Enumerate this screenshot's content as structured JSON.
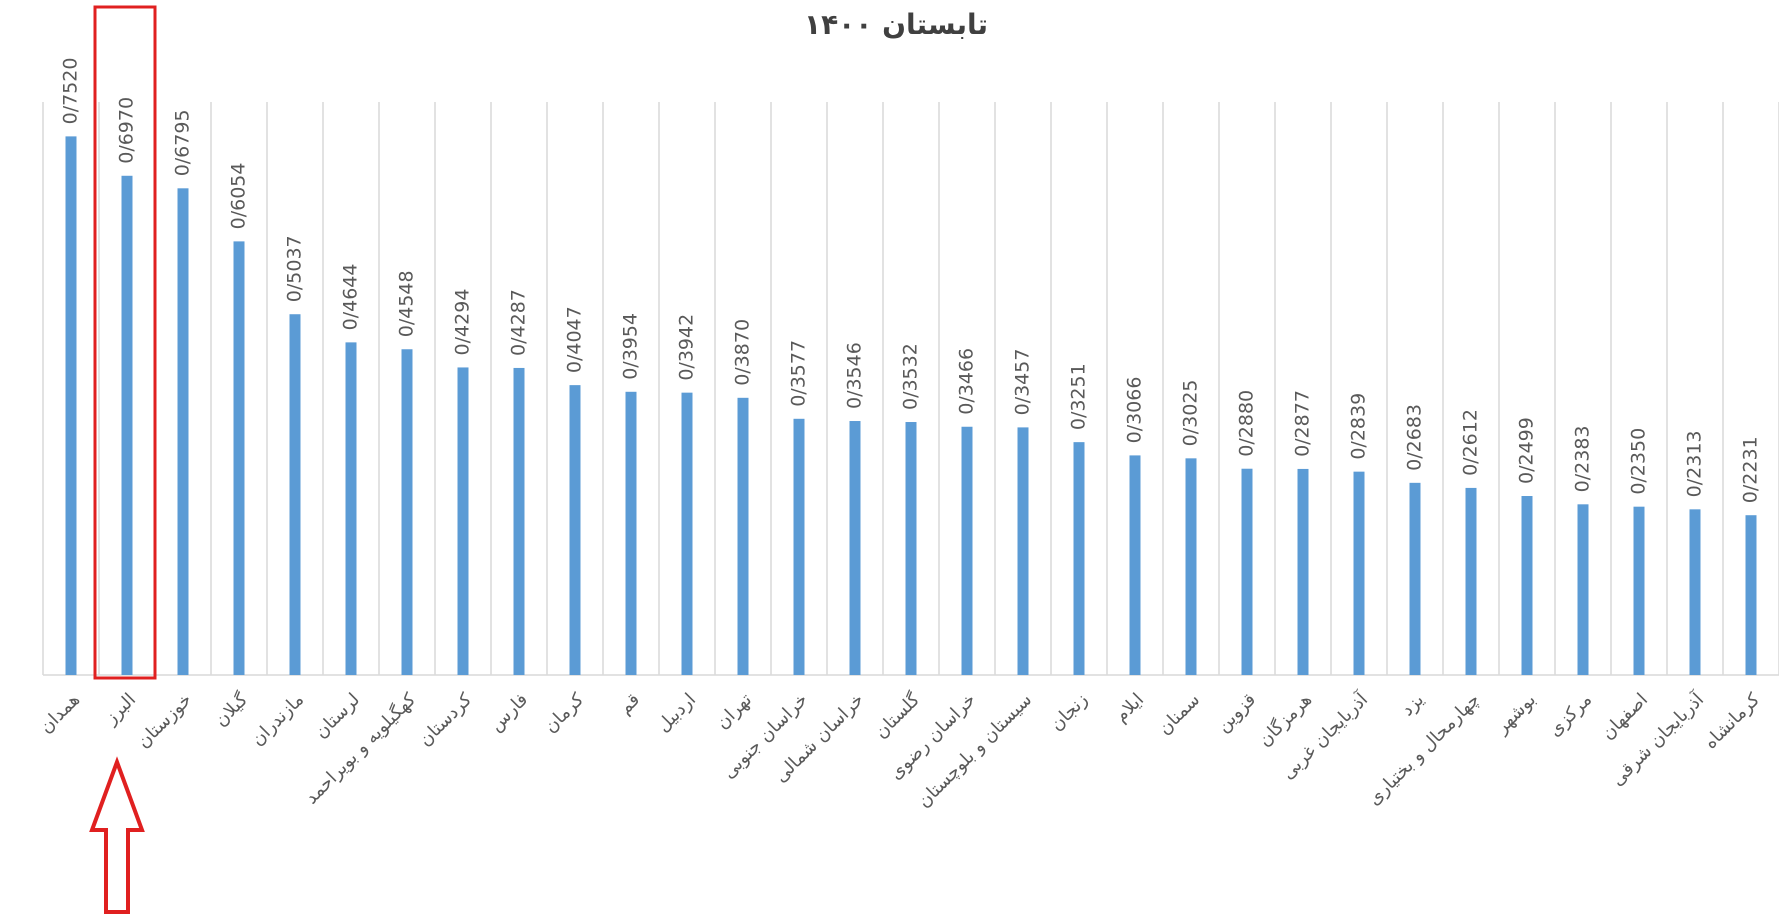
{
  "chart_data": {
    "type": "bar",
    "title": "تابستان ۱۴۰۰",
    "categories": [
      "همدان",
      "البرز",
      "خوزستان",
      "گیلان",
      "مازندران",
      "لرستان",
      "کهگیلویه و بویراحمد",
      "کردستان",
      "فارس",
      "کرمان",
      "قم",
      "اردبیل",
      "تهران",
      "خراسان جنوبی",
      "خراسان شمالی",
      "گلستان",
      "خراسان رضوی",
      "سیستان و بلوچستان",
      "زنجان",
      "ایلام",
      "سمنان",
      "قزوین",
      "هرمزگان",
      "آذربایجان غربی",
      "یزد",
      "چهارمحال و بختیاری",
      "بوشهر",
      "مرکزی",
      "اصفهان",
      "آذربایجان شرقی",
      "کرمانشاه"
    ],
    "values": [
      0.752,
      0.697,
      0.6795,
      0.6054,
      0.5037,
      0.4644,
      0.4548,
      0.4294,
      0.4287,
      0.4047,
      0.3954,
      0.3942,
      0.387,
      0.3577,
      0.3546,
      0.3532,
      0.3466,
      0.3457,
      0.3251,
      0.3066,
      0.3025,
      0.288,
      0.2877,
      0.2839,
      0.2683,
      0.2612,
      0.2499,
      0.2383,
      0.235,
      0.2313,
      0.2231
    ],
    "value_labels": [
      "0/7520",
      "0/6970",
      "0/6795",
      "0/6054",
      "0/5037",
      "0/4644",
      "0/4548",
      "0/4294",
      "0/4287",
      "0/4047",
      "0/3954",
      "0/3942",
      "0/3870",
      "0/3577",
      "0/3546",
      "0/3532",
      "0/3466",
      "0/3457",
      "0/3251",
      "0/3066",
      "0/3025",
      "0/2880",
      "0/2877",
      "0/2839",
      "0/2683",
      "0/2612",
      "0/2499",
      "0/2383",
      "0/2350",
      "0/2313",
      "0/2231"
    ],
    "color": "#5b9bd5",
    "ylim": [
      0,
      0.8
    ],
    "grid": true
  }
}
